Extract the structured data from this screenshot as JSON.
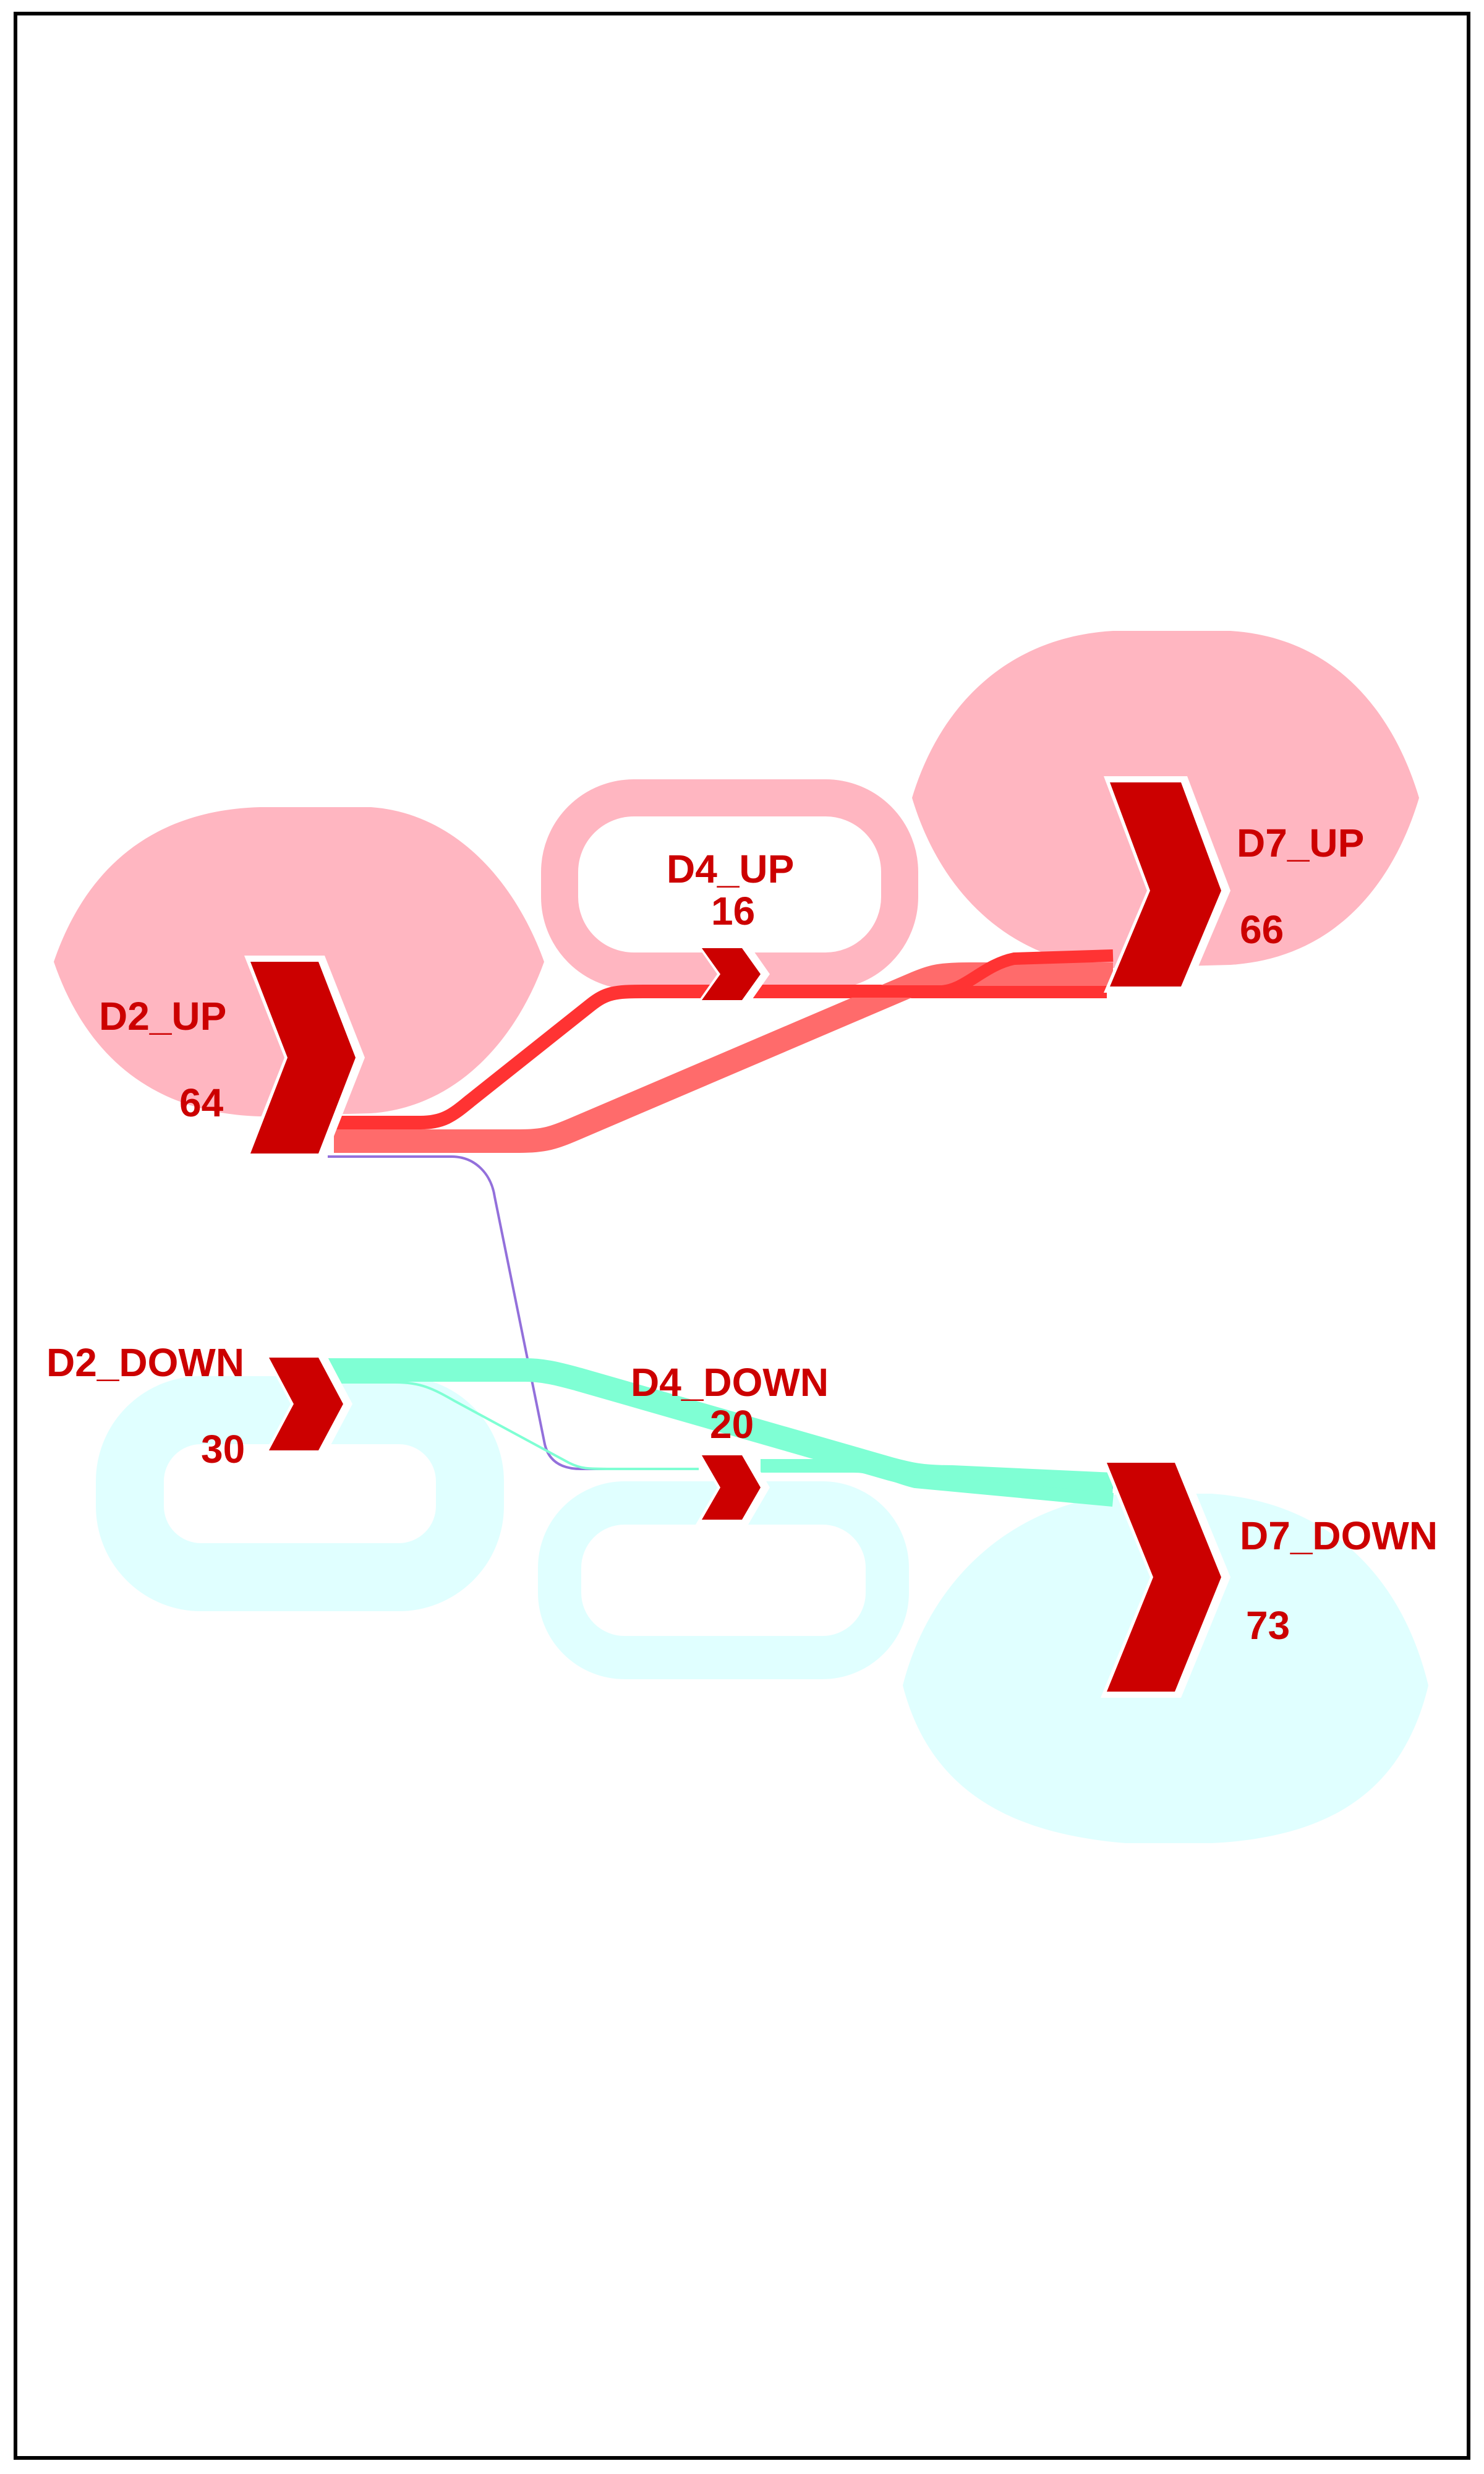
{
  "colors": {
    "frame": "#000000",
    "background": "#ffffff",
    "arrow": "#cc0000",
    "label": "#cc0000",
    "up_blob": "#ffb6c1",
    "down_blob": "#e0ffff",
    "up_link_dark": "#ff3333",
    "up_link_light": "#ff6b6b",
    "down_link": "#7fffd4",
    "cross_link": "#9370db"
  },
  "nodes": {
    "d2_up": {
      "label": "D2_UP",
      "value": "64"
    },
    "d4_up": {
      "label": "D4_UP",
      "value": "16"
    },
    "d7_up": {
      "label": "D7_UP",
      "value": "66"
    },
    "d2_down": {
      "label": "D2_DOWN",
      "value": "30"
    },
    "d4_down": {
      "label": "D4_DOWN",
      "value": "20"
    },
    "d7_down": {
      "label": "D7_DOWN",
      "value": "73"
    }
  }
}
